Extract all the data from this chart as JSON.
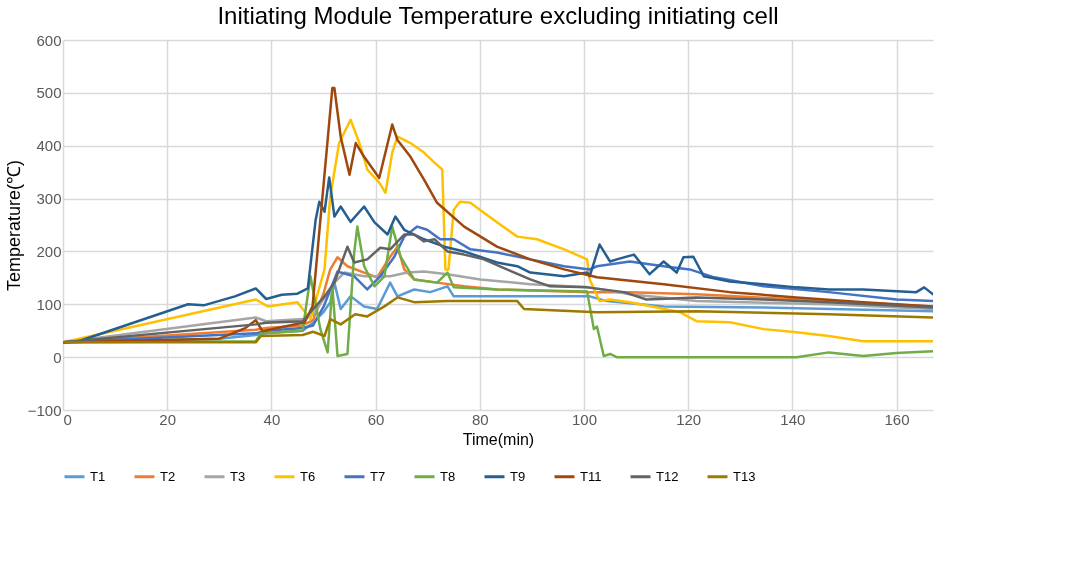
{
  "chart_data": {
    "type": "line",
    "title": "Initiating Module Temperature excluding initiating cell",
    "xlabel": "Time(min)",
    "ylabel": "Temperature(℃)",
    "xlim": [
      0,
      167
    ],
    "xticks": [
      0,
      20,
      40,
      60,
      80,
      100,
      120,
      140,
      160
    ],
    "ylim": [
      -100,
      600
    ],
    "yticks": [
      -100,
      0,
      100,
      200,
      300,
      400,
      500,
      600
    ],
    "grid": true,
    "legend": "bottom",
    "series": [
      {
        "name": "T1",
        "color": "#5b9bd5",
        "x": [
          0,
          30,
          37,
          39,
          46,
          48,
          50,
          51.3,
          52.1,
          53.3,
          55.2,
          57.8,
          60.3,
          62.8,
          64.2,
          67.4,
          70.5,
          73.8,
          75,
          83.3,
          101.1,
          104.4,
          115.3,
          134.5,
          167
        ],
        "values": [
          28,
          35,
          42,
          45,
          50,
          65,
          85,
          104,
          141,
          91,
          115,
          96,
          91,
          141,
          115,
          128,
          123,
          134,
          115,
          115,
          115,
          106,
          96,
          94,
          87
        ]
      },
      {
        "name": "T2",
        "color": "#ed7d31",
        "x": [
          0,
          37,
          39,
          46,
          48,
          50,
          51.3,
          52.7,
          54.6,
          57.8,
          60.3,
          62.8,
          64.2,
          65.5,
          67.4,
          71.8,
          77,
          83.3,
          101.1,
          108.8,
          121.6,
          147,
          167
        ],
        "values": [
          28,
          52,
          55,
          60,
          70,
          120,
          166,
          189,
          172,
          160,
          151,
          190,
          209,
          166,
          147,
          141,
          134,
          128,
          123,
          123,
          119,
          106,
          96
        ]
      },
      {
        "name": "T3",
        "color": "#a5a5a5",
        "x": [
          0,
          37,
          39,
          46,
          48,
          50,
          52,
          54,
          57.8,
          62.8,
          66.1,
          69.3,
          73.8,
          80.1,
          89.7,
          101.1,
          108.8,
          121.6,
          147,
          167
        ],
        "values": [
          28,
          75,
          68,
          72,
          80,
          110,
          140,
          160,
          153,
          153,
          160,
          162,
          157,
          147,
          138,
          132,
          119,
          106,
          100,
          91
        ]
      },
      {
        "name": "T6",
        "color": "#ffc000",
        "x": [
          0,
          37,
          39.3,
          45,
          47.5,
          50.2,
          51.3,
          53,
          55.2,
          56.9,
          58.4,
          60.7,
          61.9,
          63.2,
          64.2,
          66.7,
          69.3,
          71.3,
          72.8,
          73.4,
          74,
          75,
          76.2,
          78.2,
          80.8,
          83.3,
          87.2,
          91,
          96.2,
          100.6,
          101.1,
          103,
          105,
          108.8,
          114,
          118.4,
          121.6,
          128,
          134.5,
          140.8,
          147,
          153.6,
          160,
          167
        ],
        "values": [
          28,
          109,
          96,
          104,
          72,
          166,
          304,
          405,
          449,
          405,
          355,
          330,
          311,
          387,
          417,
          405,
          387,
          368,
          355,
          166,
          166,
          279,
          294,
          292,
          273,
          255,
          228,
          223,
          204,
          185,
          147,
          106,
          109,
          104,
          94,
          85,
          68,
          66,
          53,
          47,
          40,
          30,
          30,
          30
        ]
      },
      {
        "name": "T7",
        "color": "#4472c4",
        "x": [
          0,
          37,
          39,
          46,
          48,
          50,
          52.7,
          53.3,
          55.9,
          58.4,
          60.9,
          63.6,
          65.5,
          68,
          69.9,
          72.4,
          75,
          78.2,
          83.3,
          89.7,
          96.2,
          101.1,
          102.5,
          108.8,
          115.3,
          120.3,
          125,
          134.5,
          147,
          160,
          167
        ],
        "values": [
          28,
          45,
          50,
          55,
          60,
          95,
          162,
          160,
          153,
          128,
          153,
          190,
          228,
          247,
          241,
          223,
          223,
          204,
          198,
          185,
          172,
          166,
          172,
          181,
          172,
          166,
          151,
          134,
          123,
          109,
          106
        ]
      },
      {
        "name": "T8",
        "color": "#70ad47",
        "x": [
          0,
          37,
          38,
          46,
          47.5,
          49.4,
          50.8,
          51.7,
          52.7,
          54.6,
          55.9,
          56.5,
          57.8,
          59.8,
          61.7,
          63.2,
          64.8,
          67.4,
          71.8,
          73.8,
          75,
          83.3,
          100.6,
          101.9,
          102.5,
          103.8,
          105,
          106.3,
          140.8,
          147,
          153.6,
          160,
          167
        ],
        "values": [
          28,
          30,
          45,
          50,
          153,
          53,
          9,
          134,
          2,
          6,
          198,
          247,
          172,
          134,
          153,
          247,
          190,
          147,
          141,
          160,
          132,
          128,
          124,
          53,
          58,
          2,
          6,
          0,
          0,
          9,
          2,
          8,
          11
        ]
      },
      {
        "name": "T9",
        "color": "#255e91",
        "x": [
          0,
          3,
          24,
          27,
          33,
          37,
          39,
          42,
          45,
          47,
          48.5,
          49.2,
          50.2,
          51.1,
          52.1,
          53.3,
          55.2,
          57.8,
          59.8,
          62.3,
          63.8,
          65.5,
          69.3,
          73.2,
          77,
          83.3,
          87.2,
          89.7,
          96.2,
          100.6,
          101.1,
          103,
          105,
          106.3,
          109.6,
          112.6,
          115.3,
          117.8,
          119.1,
          121,
          123,
          128,
          134.5,
          140.8,
          147,
          153.6,
          163.8,
          165.3,
          167
        ],
        "values": [
          28,
          30,
          100,
          98,
          115,
          130,
          110,
          118,
          120,
          130,
          260,
          294,
          275,
          340,
          266,
          285,
          256,
          285,
          255,
          232,
          266,
          241,
          223,
          209,
          200,
          179,
          172,
          160,
          153,
          160,
          153,
          213,
          181,
          185,
          194,
          157,
          181,
          160,
          189,
          190,
          153,
          143,
          138,
          132,
          128,
          128,
          123,
          132,
          119
        ]
      },
      {
        "name": "T11",
        "color": "#9e480e",
        "x": [
          0,
          30,
          35,
          37,
          38.3,
          46.4,
          47.9,
          51.7,
          52.1,
          53.3,
          55,
          56.2,
          57.8,
          60.7,
          63.2,
          64.2,
          66.7,
          69.3,
          71.8,
          77,
          83.3,
          89.7,
          96.2,
          102.5,
          115.3,
          128,
          140.8,
          153.6,
          167
        ],
        "values": [
          28,
          35,
          55,
          70,
          49,
          66,
          96,
          509,
          509,
          417,
          345,
          405,
          379,
          339,
          440,
          411,
          379,
          336,
          292,
          247,
          209,
          185,
          166,
          151,
          138,
          123,
          113,
          104,
          96
        ]
      },
      {
        "name": "T12",
        "color": "#636363",
        "x": [
          0,
          37,
          39,
          46,
          47.5,
          50.2,
          52.1,
          54.6,
          55.9,
          58.4,
          60.9,
          62.8,
          65.5,
          67.4,
          69.3,
          71.3,
          73.8,
          77,
          80.8,
          85.2,
          89.7,
          93.5,
          100.6,
          107.7,
          112,
          121.6,
          134.5,
          147,
          167
        ],
        "values": [
          28,
          62,
          65,
          68,
          85,
          115,
          141,
          209,
          179,
          185,
          207,
          204,
          232,
          232,
          219,
          223,
          200,
          194,
          185,
          166,
          147,
          134,
          132,
          123,
          109,
          113,
          109,
          104,
          94
        ]
      },
      {
        "name": "T13",
        "color": "#9c7a00",
        "x": [
          0,
          37,
          38,
          46,
          48,
          50.2,
          51.3,
          53.3,
          56.1,
          58.4,
          61.7,
          64.2,
          67.4,
          73.8,
          83.3,
          87.2,
          88.5,
          102.5,
          121.6,
          147,
          167
        ],
        "values": [
          28,
          28,
          40,
          42,
          48,
          40,
          72,
          62,
          81,
          77,
          96,
          113,
          104,
          106,
          106,
          106,
          91,
          85,
          87,
          81,
          75
        ]
      }
    ]
  }
}
